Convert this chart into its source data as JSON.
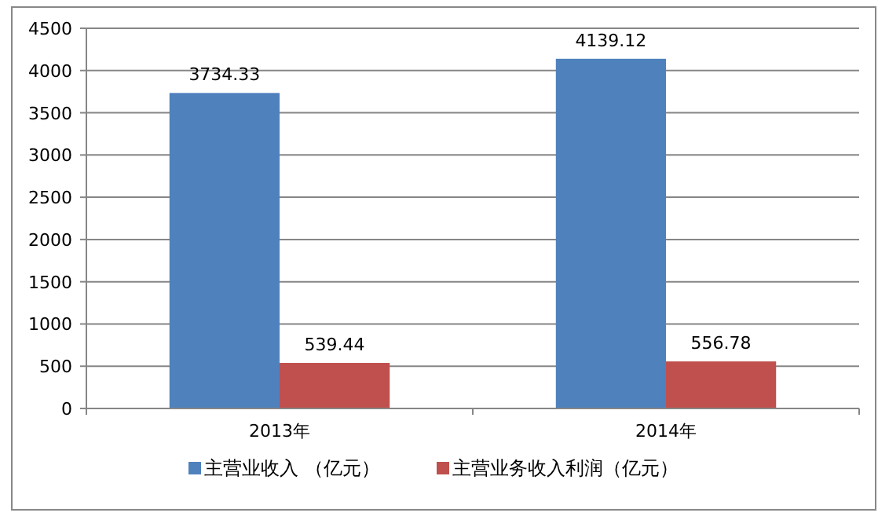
{
  "chart_data": {
    "type": "bar",
    "categories": [
      "2013年",
      "2014年"
    ],
    "series": [
      {
        "name": "主营业收入 （亿元）",
        "color": "#4f81bd",
        "values": [
          3734.33,
          4139.12
        ]
      },
      {
        "name": "主营业务收入利润（亿元）",
        "color": "#c0504d",
        "values": [
          539.44,
          556.78
        ]
      }
    ],
    "ylim": [
      0,
      4500
    ],
    "yticks": [
      0,
      500,
      1000,
      1500,
      2000,
      2500,
      3000,
      3500,
      4000,
      4500
    ],
    "grid": "y",
    "legend": "bottom",
    "data_labels": true
  }
}
